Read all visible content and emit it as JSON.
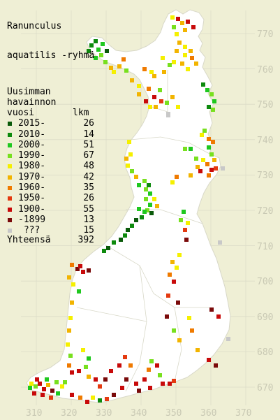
{
  "title": {
    "line1": "Ranunculus",
    "line2": "aquatilis -ryhmä"
  },
  "legend": {
    "header1": "Uusimman",
    "header2": "havainnon",
    "header3_left": "vuosi",
    "header3_right": "lkm",
    "items": [
      {
        "label": "2015-",
        "count": "26",
        "color": "#0a5a0a"
      },
      {
        "label": "2010-",
        "count": "14",
        "color": "#0d8a0d"
      },
      {
        "label": "2000-",
        "count": "51",
        "color": "#1fc81f"
      },
      {
        "label": "1990-",
        "count": "67",
        "color": "#78e01e"
      },
      {
        "label": "1980-",
        "count": "48",
        "color": "#f5f000"
      },
      {
        "label": "1970-",
        "count": "42",
        "color": "#f2b400"
      },
      {
        "label": "1960-",
        "count": "35",
        "color": "#ef7a00"
      },
      {
        "label": "1950-",
        "count": "26",
        "color": "#e43a10"
      },
      {
        "label": "1900-",
        "count": "55",
        "color": "#c80a0a"
      },
      {
        "label": "-1899",
        "count": "13",
        "color": "#7a0a0a"
      },
      {
        "label": " ???",
        "count": "15",
        "color": "#c8c8c8"
      }
    ],
    "total_label": "Yhteensä",
    "total_count": "392"
  },
  "x_ticks": [
    "310",
    "320",
    "330",
    "340",
    "350",
    "360",
    "370"
  ],
  "y_ticks": [
    "770",
    "760",
    "750",
    "740",
    "730",
    "720",
    "710",
    "700",
    "690",
    "680",
    "670"
  ],
  "colors": {
    "background": "#efefd5",
    "land": "#ffffff",
    "grid": "#d6d6c4",
    "tick_label": "#c9c9b4"
  }
}
